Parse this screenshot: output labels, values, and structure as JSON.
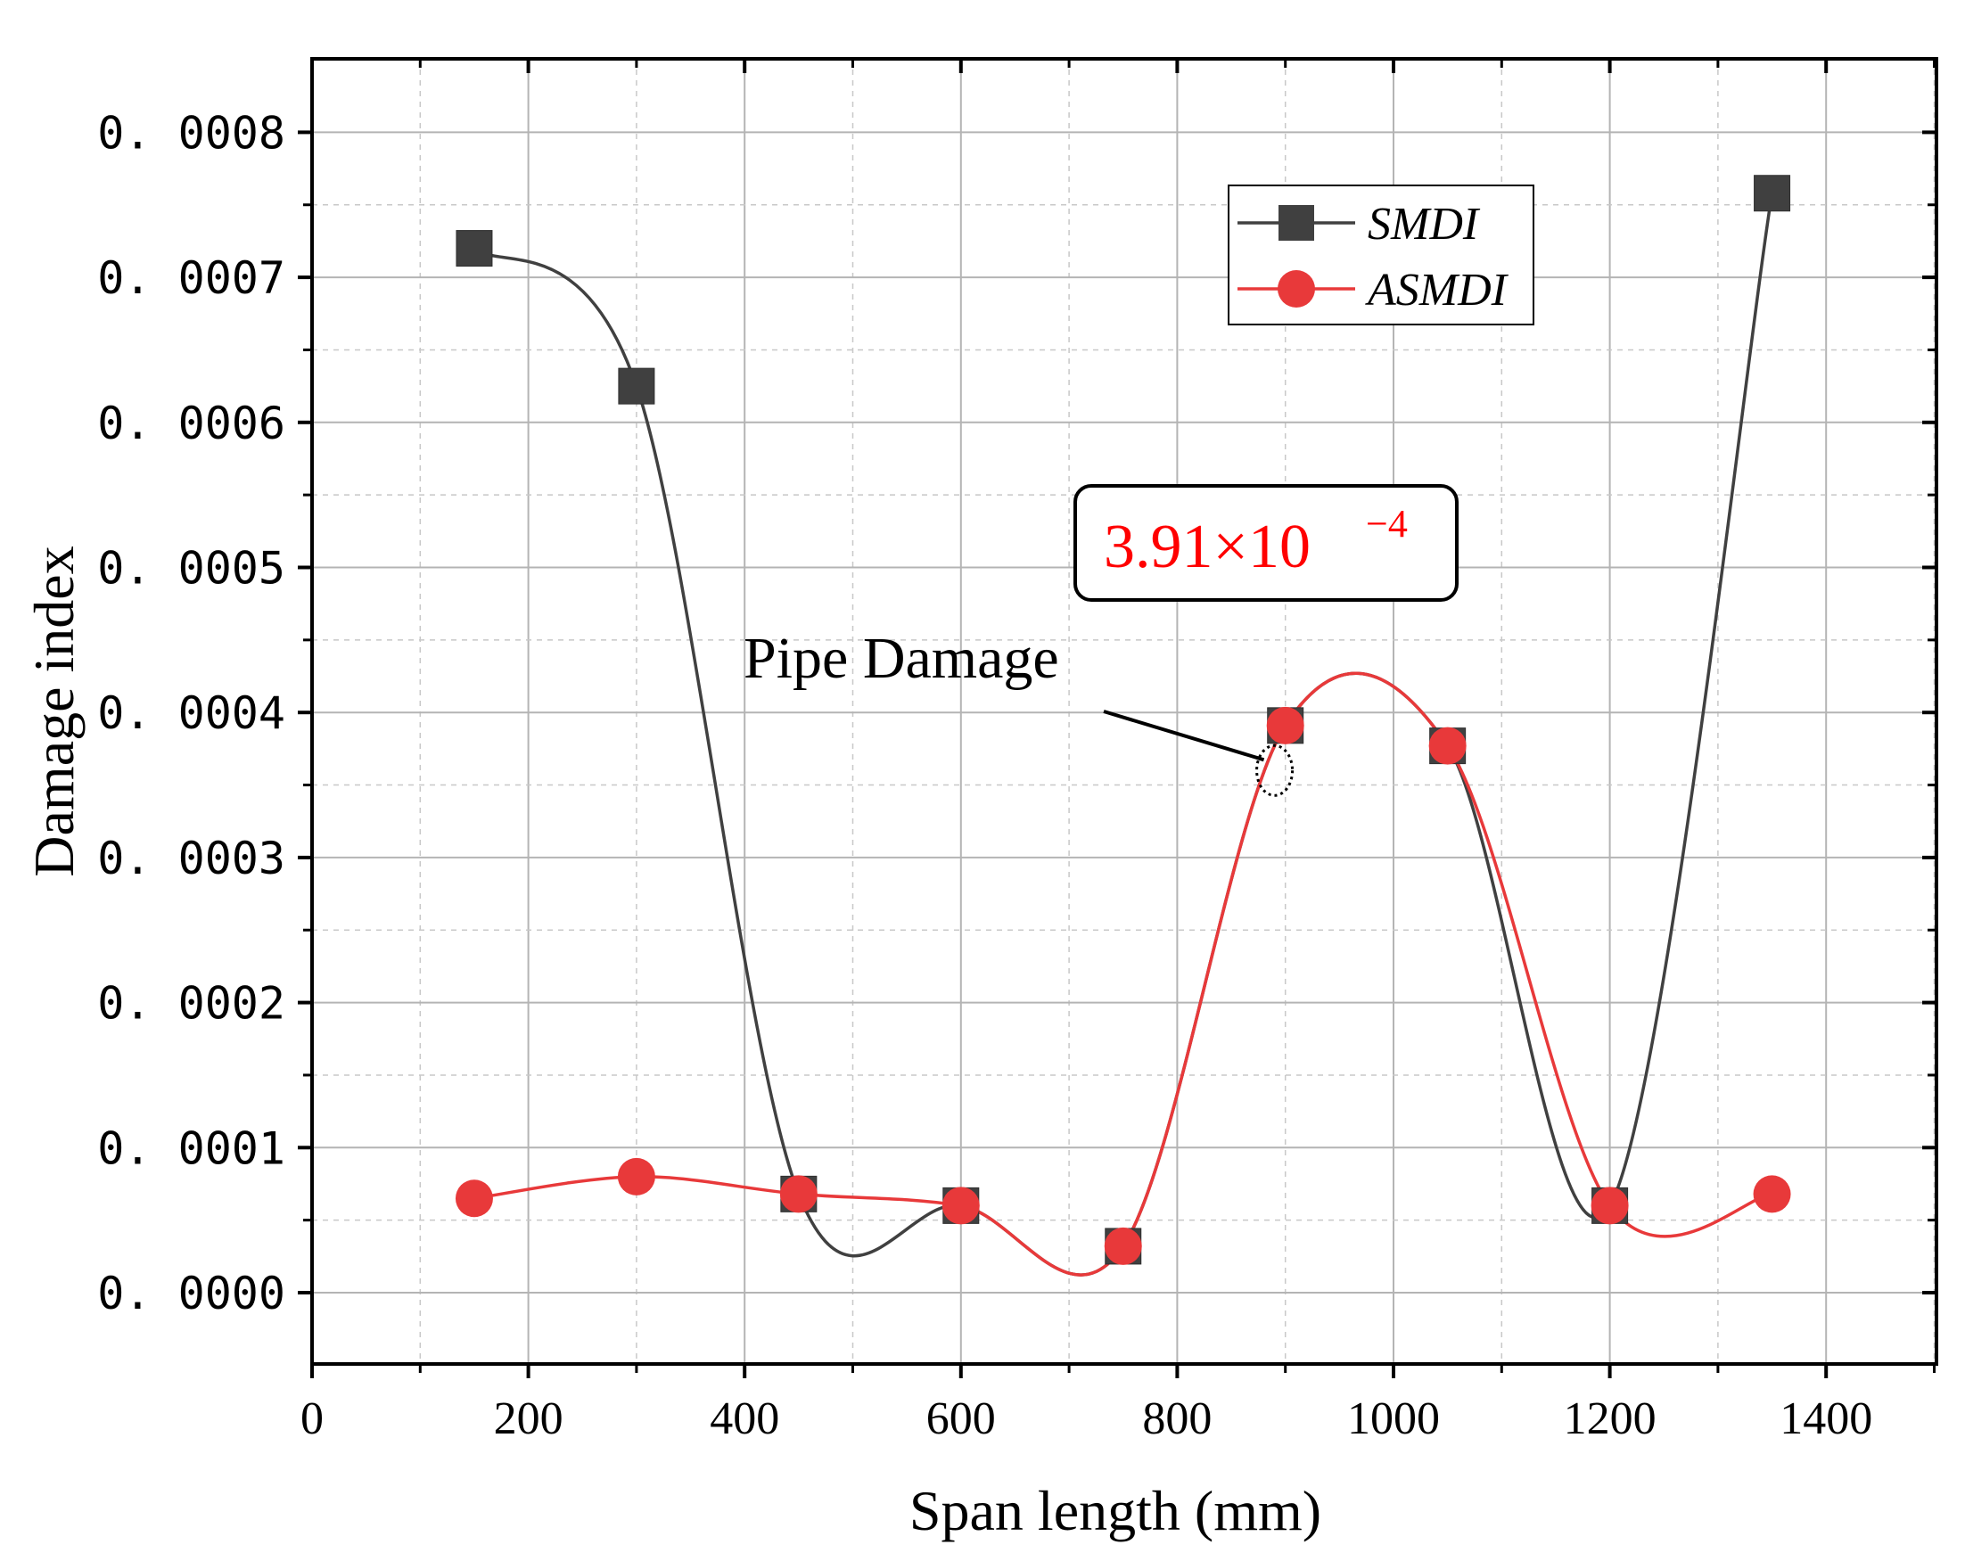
{
  "chart_data": {
    "type": "line",
    "title": "",
    "xlabel": "Span length (mm)",
    "ylabel": "Damage index",
    "xlim": [
      0,
      1500
    ],
    "ylim": [
      -5e-05,
      0.00084
    ],
    "x_ticks": [
      0,
      200,
      400,
      600,
      800,
      1000,
      1200,
      1400
    ],
    "x_tick_labels": [
      "0",
      "200",
      "400",
      "600",
      "800",
      "1000",
      "1200",
      "1400"
    ],
    "y_ticks": [
      0.0,
      0.0001,
      0.0002,
      0.0003,
      0.0004,
      0.0005,
      0.0006,
      0.0007,
      0.0008
    ],
    "y_tick_labels": [
      "0. 0000",
      "0. 0001",
      "0. 0002",
      "0. 0003",
      "0. 0004",
      "0. 0005",
      "0. 0006",
      "0. 0007",
      "0. 0008"
    ],
    "grid": true,
    "legend_position": "top-right",
    "x": [
      150,
      300,
      450,
      600,
      750,
      900,
      1050,
      1200,
      1350
    ],
    "series": [
      {
        "name": "SMDI",
        "marker": "square",
        "color": "#404040",
        "values": [
          0.00072,
          0.000625,
          6.8e-05,
          6e-05,
          3.2e-05,
          0.000391,
          0.000377,
          6e-05,
          0.000758
        ]
      },
      {
        "name": "ASMDI",
        "marker": "circle",
        "color": "#e8393a",
        "values": [
          6.5e-05,
          8e-05,
          6.8e-05,
          6e-05,
          3.2e-05,
          0.000391,
          0.000377,
          6e-05,
          6.8e-05
        ]
      }
    ],
    "annotations": [
      {
        "text": "3.91×10",
        "exponent": "−4",
        "color": "#ff0000",
        "refers_to_x": 900
      },
      {
        "text": "Pipe Damage",
        "color": "#000000",
        "points_to": [
          890,
          0.00036
        ]
      }
    ]
  }
}
